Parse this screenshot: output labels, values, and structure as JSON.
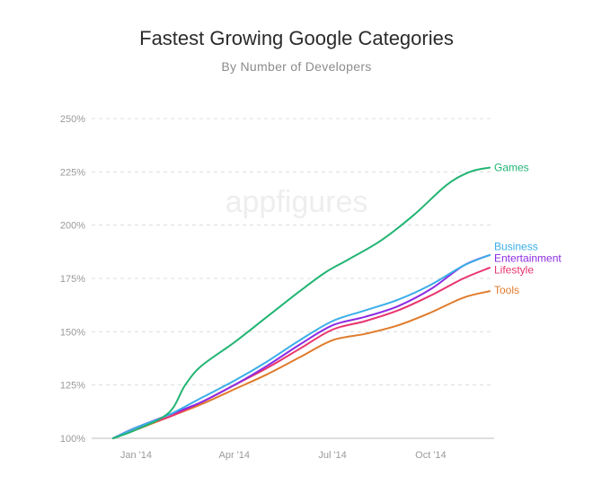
{
  "chart_data": {
    "type": "line",
    "title": "Fastest Growing Google Categories",
    "subtitle": "By Number of Developers",
    "watermark": "appfigures",
    "xlabel": "",
    "ylabel": "",
    "ylim": [
      100,
      250
    ],
    "y_ticks": [
      {
        "value": 100,
        "label": "100%"
      },
      {
        "value": 125,
        "label": "125%"
      },
      {
        "value": 150,
        "label": "150%"
      },
      {
        "value": 175,
        "label": "175%"
      },
      {
        "value": 200,
        "label": "200%"
      },
      {
        "value": 225,
        "label": "225%"
      },
      {
        "value": 250,
        "label": "250%"
      }
    ],
    "xlim": [
      0,
      11.8
    ],
    "x_ticks": [
      {
        "value": 1,
        "label": "Jan '14"
      },
      {
        "value": 4,
        "label": "Apr '14"
      },
      {
        "value": 7,
        "label": "Jul '14"
      },
      {
        "value": 10,
        "label": "Oct '14"
      }
    ],
    "grid": true,
    "series": [
      {
        "name": "Games",
        "color": "#22b573",
        "x": [
          0.3,
          1,
          2,
          2.5,
          3,
          4,
          5,
          6,
          6.8,
          7.5,
          8.5,
          9.5,
          10.5,
          11.2,
          11.8
        ],
        "y": [
          100,
          104,
          112,
          125,
          134,
          145,
          157,
          169,
          178,
          184,
          193,
          205,
          219,
          225,
          227
        ]
      },
      {
        "name": "Business",
        "color": "#3aaee8",
        "x": [
          0.3,
          1,
          2,
          3,
          4,
          5,
          6,
          7,
          8,
          9,
          10,
          11,
          11.8
        ],
        "y": [
          100,
          105,
          111,
          119,
          127,
          136,
          146,
          155,
          160,
          165,
          172,
          181,
          186
        ]
      },
      {
        "name": "Entertainment",
        "color": "#8b2be2",
        "x": [
          0.3,
          1,
          2,
          3,
          4,
          5,
          6,
          7,
          8,
          9,
          10,
          11,
          11.8
        ],
        "y": [
          100,
          105,
          111,
          117,
          125,
          134,
          144,
          153,
          157,
          162,
          170,
          181,
          186
        ]
      },
      {
        "name": "Lifestyle",
        "color": "#e8346d",
        "x": [
          0.3,
          1,
          2,
          3,
          4,
          5,
          6,
          7,
          8,
          9,
          10,
          11,
          11.8
        ],
        "y": [
          100,
          105,
          110,
          117,
          125,
          133,
          142,
          151,
          155,
          160,
          167,
          175,
          180
        ]
      },
      {
        "name": "Tools",
        "color": "#e07b2c",
        "x": [
          0.3,
          1,
          2,
          3,
          4,
          5,
          6,
          7,
          8,
          9,
          10,
          11,
          11.8
        ],
        "y": [
          100,
          104,
          110,
          116,
          123,
          130,
          138,
          146,
          149,
          153,
          159,
          166,
          169
        ]
      }
    ],
    "series_label_y": {
      "Games": 227,
      "Business": 190,
      "Entertainment": 184.5,
      "Lifestyle": 179,
      "Tools": 169.5
    }
  }
}
